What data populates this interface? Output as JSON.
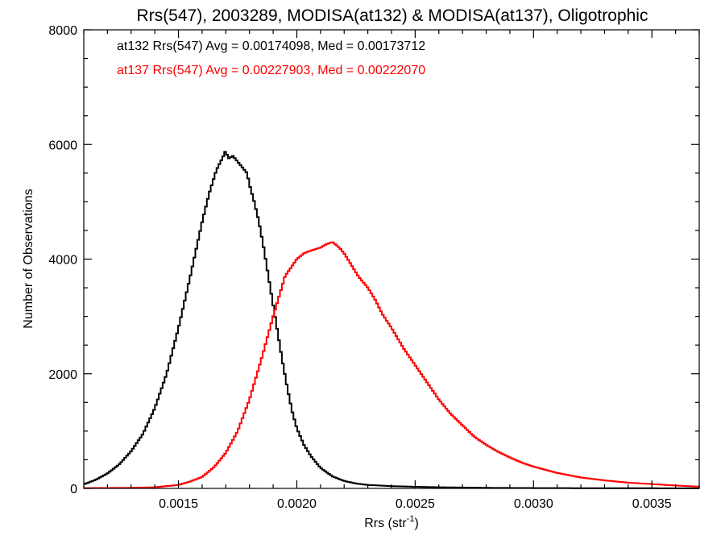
{
  "chart_data": {
    "type": "line",
    "title": "Rrs(547), 2003289, MODISA(at132) & MODISA(at137), Oligotrophic",
    "xlabel": "Rrs (str",
    "xlabel_sup": "-1",
    "xlabel_close": ")",
    "ylabel": "Number of Observations",
    "xlim": [
      0.0011,
      0.0037
    ],
    "ylim": [
      0,
      8000
    ],
    "x_ticks": [
      0.0015,
      0.002,
      0.0025,
      0.003,
      0.0035
    ],
    "x_tick_labels": [
      "0.0015",
      "0.0020",
      "0.0025",
      "0.0030",
      "0.0035"
    ],
    "y_ticks": [
      0,
      2000,
      4000,
      6000,
      8000
    ],
    "y_tick_labels": [
      "0",
      "2000",
      "4000",
      "6000",
      "8000"
    ],
    "grid": false,
    "legend": "none",
    "annotations": [
      {
        "text": "at132 Rrs(547) Avg = 0.00174098, Med = 0.00173712",
        "color": "#000000"
      },
      {
        "text": "at137 Rrs(547) Avg = 0.00227903, Med = 0.00222070",
        "color": "#ff0000"
      }
    ],
    "series": [
      {
        "color": "#000000",
        "x": [
          0.0011,
          0.00115,
          0.0012,
          0.00125,
          0.0013,
          0.00135,
          0.0014,
          0.00145,
          0.0015,
          0.00155,
          0.0016,
          0.00163,
          0.00166,
          0.00169,
          0.0017,
          0.00171,
          0.00173,
          0.00175,
          0.00177,
          0.00179,
          0.0018,
          0.00182,
          0.00184,
          0.00186,
          0.00188,
          0.0019,
          0.00192,
          0.00194,
          0.00196,
          0.00198,
          0.002,
          0.00203,
          0.00206,
          0.0021,
          0.00215,
          0.0022,
          0.00225,
          0.0023,
          0.0024,
          0.0025,
          0.0026,
          0.0027,
          0.0028,
          0.0029,
          0.003,
          0.0031,
          0.0032,
          0.0034,
          0.0037
        ],
        "y": [
          70,
          150,
          260,
          420,
          650,
          950,
          1400,
          2000,
          2800,
          3700,
          4650,
          5150,
          5550,
          5800,
          5900,
          5750,
          5800,
          5700,
          5600,
          5500,
          5300,
          5000,
          4650,
          4200,
          3700,
          3200,
          2700,
          2200,
          1750,
          1350,
          1050,
          760,
          560,
          360,
          210,
          130,
          85,
          60,
          40,
          28,
          20,
          15,
          10,
          8,
          6,
          5,
          4,
          3,
          2
        ]
      },
      {
        "color": "#ff0000",
        "x": [
          0.0011,
          0.0013,
          0.0014,
          0.0015,
          0.00155,
          0.0016,
          0.00165,
          0.0017,
          0.00175,
          0.0018,
          0.00185,
          0.0019,
          0.00195,
          0.002,
          0.00203,
          0.00206,
          0.0021,
          0.00212,
          0.00215,
          0.00218,
          0.0022,
          0.00223,
          0.00226,
          0.0023,
          0.00233,
          0.00236,
          0.0024,
          0.00245,
          0.0025,
          0.00255,
          0.0026,
          0.00265,
          0.0027,
          0.00275,
          0.0028,
          0.00285,
          0.0029,
          0.00295,
          0.003,
          0.0031,
          0.0032,
          0.0033,
          0.0034,
          0.0035,
          0.0036,
          0.0037
        ],
        "y": [
          5,
          10,
          20,
          60,
          120,
          200,
          370,
          620,
          1000,
          1550,
          2250,
          3000,
          3700,
          4000,
          4100,
          4150,
          4200,
          4250,
          4300,
          4200,
          4100,
          3900,
          3700,
          3500,
          3300,
          3050,
          2800,
          2450,
          2150,
          1850,
          1550,
          1300,
          1100,
          900,
          760,
          640,
          540,
          450,
          380,
          270,
          190,
          140,
          100,
          75,
          50,
          30
        ]
      }
    ]
  }
}
